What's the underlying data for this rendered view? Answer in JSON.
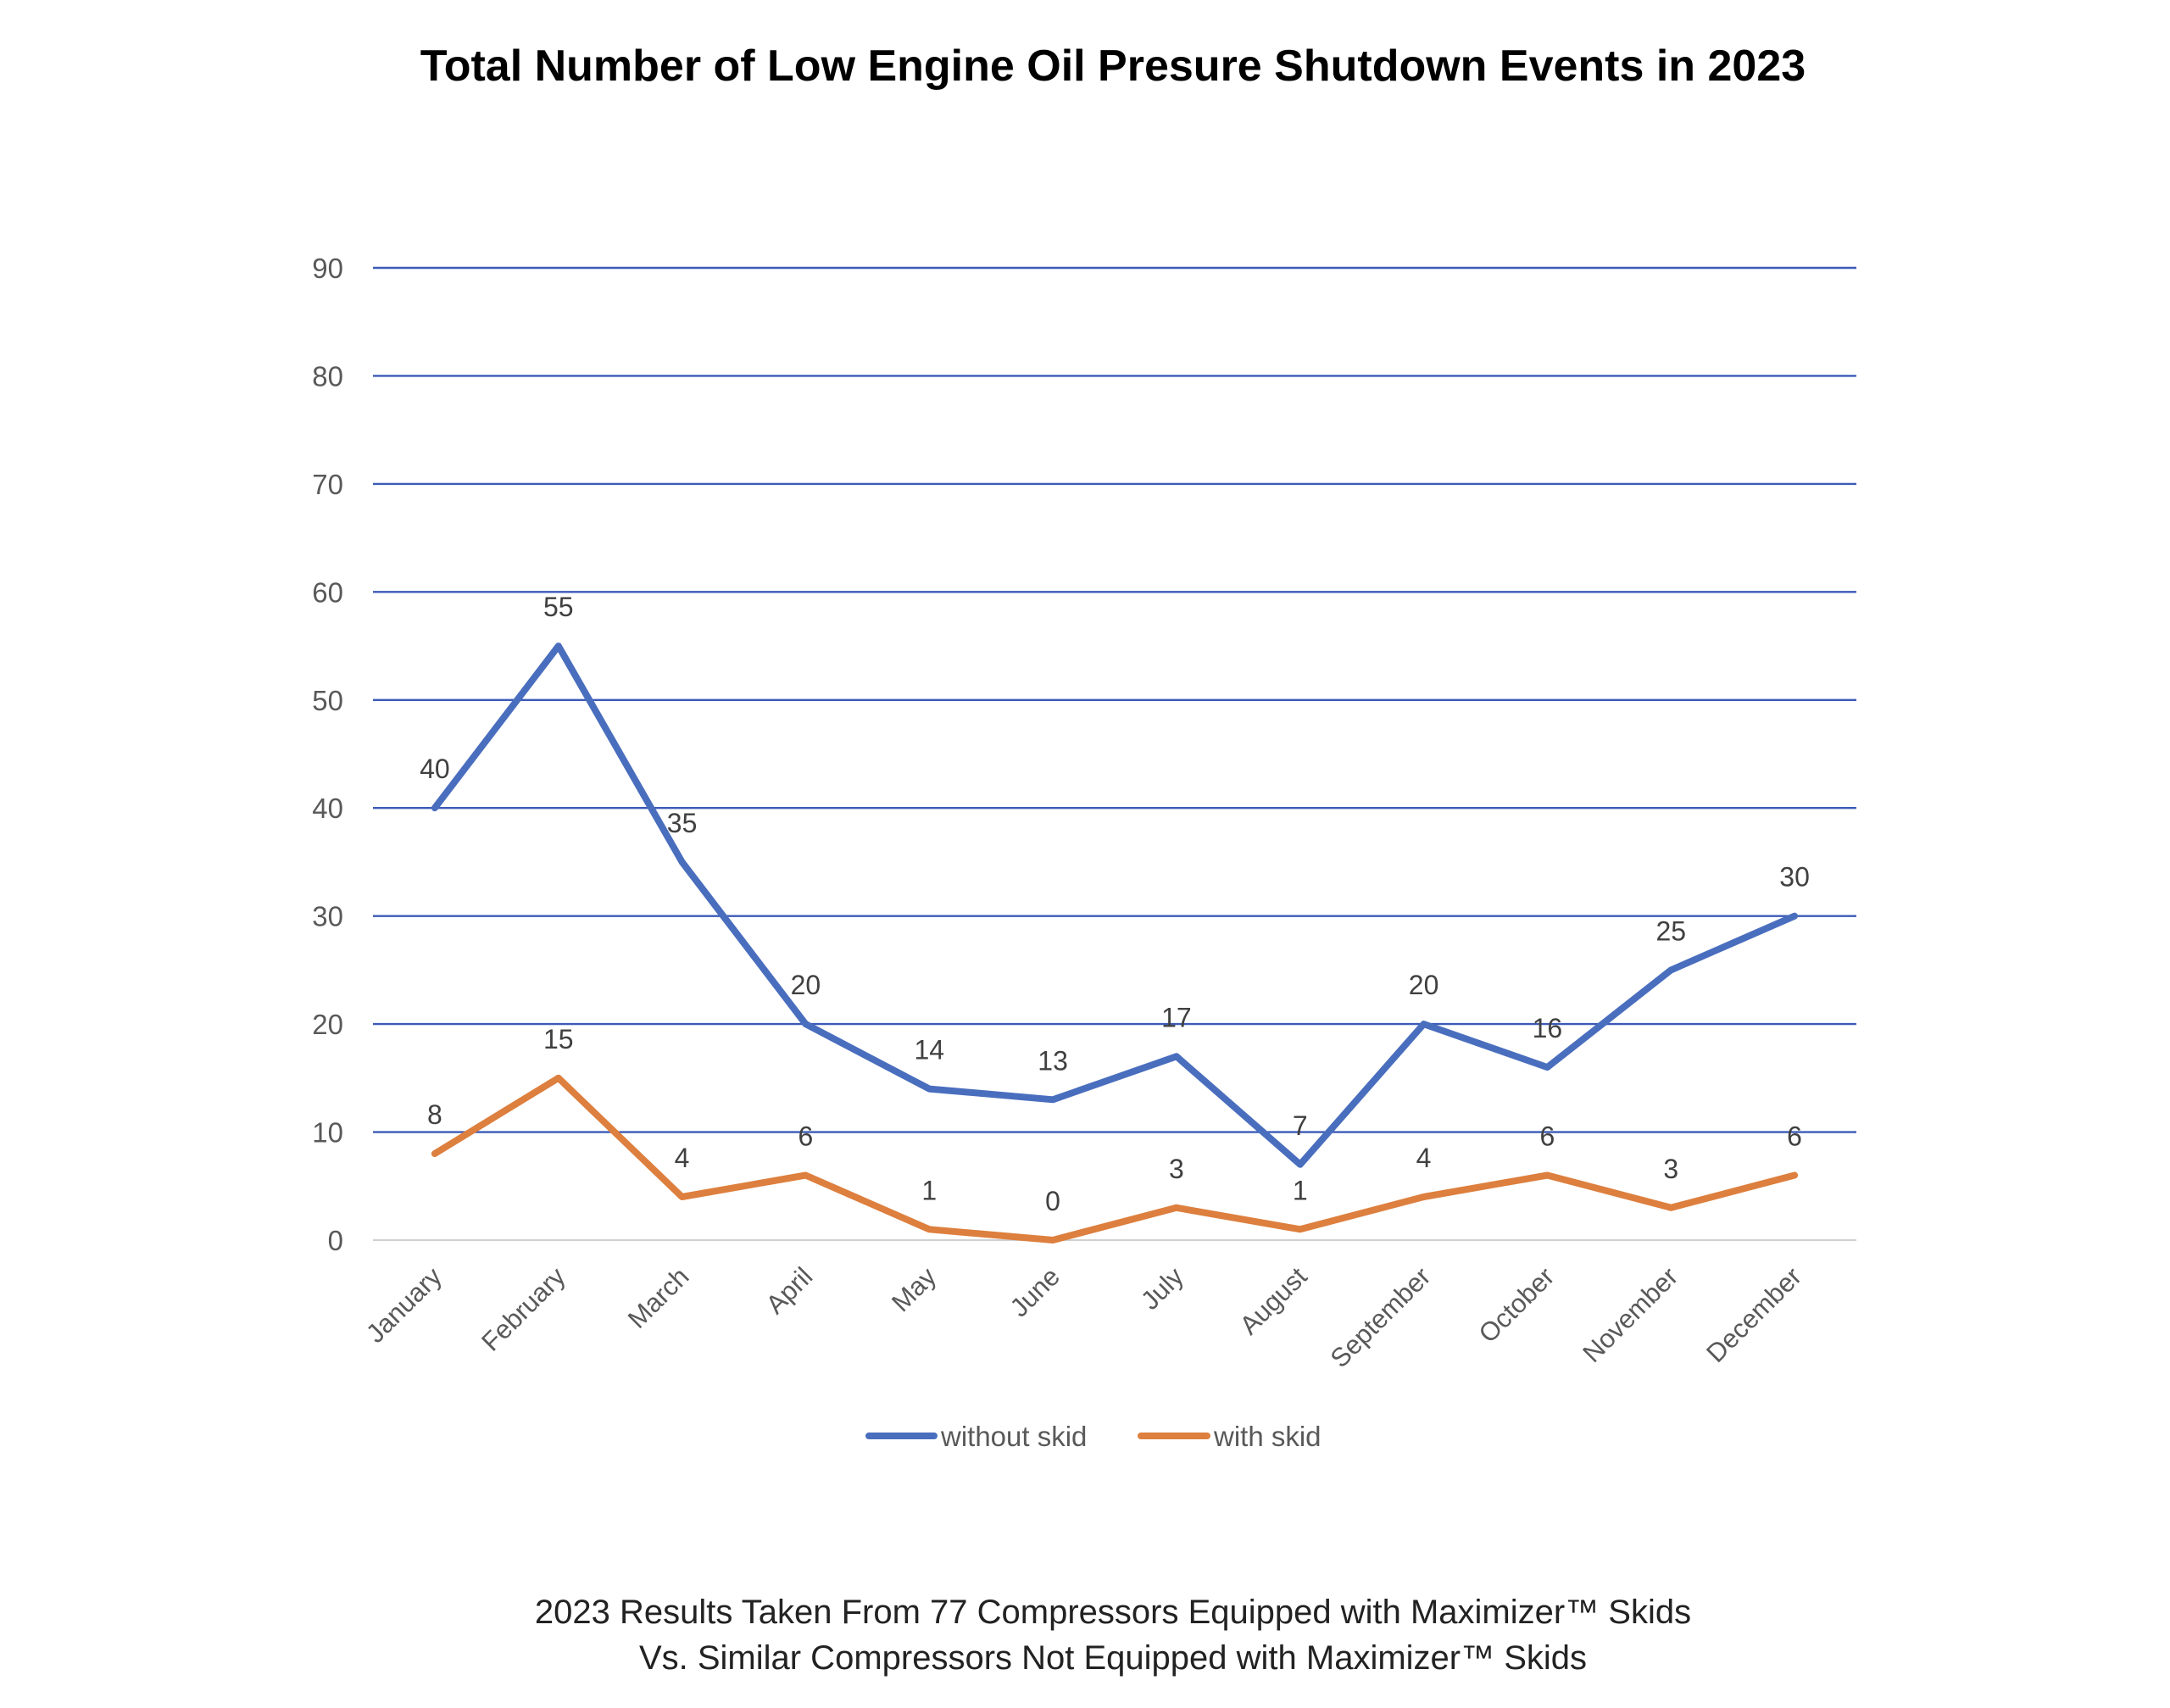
{
  "chart_data": {
    "type": "line",
    "title": "Total Number of Low Engine Oil Presure Shutdown Events in 2023",
    "categories": [
      "January",
      "February",
      "March",
      "April",
      "May",
      "June",
      "July",
      "August",
      "September",
      "October",
      "November",
      "December"
    ],
    "series": [
      {
        "name": "without skid",
        "values": [
          40,
          55,
          35,
          20,
          14,
          13,
          17,
          7,
          20,
          16,
          25,
          30
        ],
        "color": "#4a6ebe"
      },
      {
        "name": "with skid",
        "values": [
          8,
          15,
          4,
          6,
          1,
          0,
          3,
          1,
          4,
          6,
          3,
          6
        ],
        "color": "#dd7f3e"
      }
    ],
    "ylim": [
      0,
      90
    ],
    "yticks": [
      0,
      10,
      20,
      30,
      40,
      50,
      60,
      70,
      80,
      90
    ],
    "grid": true,
    "gridline_color": "#3b5ab8",
    "legend": "bottom-center",
    "data_labels": true
  },
  "caption": {
    "line1": "2023 Results Taken From 77 Compressors Equipped with Maximizer™ Skids",
    "line2": "Vs. Similar Compressors Not Equipped with Maximizer™ Skids"
  }
}
